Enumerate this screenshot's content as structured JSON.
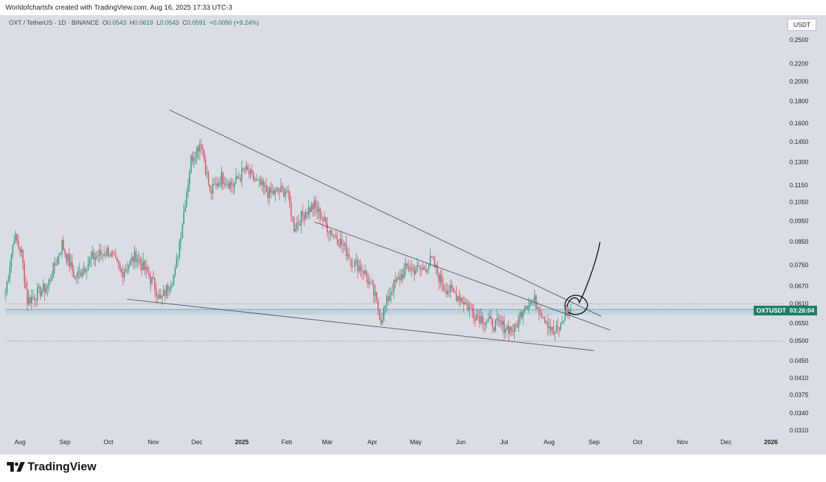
{
  "header": {
    "credit": "Worldofchartsfx created with TradingView.com, Aug 16, 2025 17:33 UTC-3"
  },
  "legend": {
    "symbol": "OXT / TetherUS · 1D · BINANCE",
    "open_label": "O",
    "open": "0.0543",
    "high_label": "H",
    "high": "0.0619",
    "low_label": "L",
    "low": "0.0543",
    "close_label": "C",
    "close": "0.0591",
    "change": "+0.0050 (+9.24%)"
  },
  "currency": "USDT",
  "price_tag": {
    "symbol": "OXTUSDT",
    "countdown": "03:26:04"
  },
  "footer": {
    "brand": "TradingView"
  },
  "colors": {
    "up": "#1f9e83",
    "down": "#e5485c",
    "background": "#dadde4",
    "zone": "#b9cfdb",
    "tag": "#1d7f6b"
  },
  "chart_data": {
    "type": "candlestick",
    "y_scale": "log",
    "y_ticks": [
      "0.2500",
      "0.2200",
      "0.2000",
      "0.1800",
      "0.1600",
      "0.1450",
      "0.1300",
      "0.1150",
      "0.1050",
      "0.0950",
      "0.0850",
      "0.0750",
      "0.0670",
      "0.0610",
      "0.0550",
      "0.0500",
      "0.0450",
      "0.0410",
      "0.0375",
      "0.0340",
      "0.0310"
    ],
    "x_ticks": [
      "Aug",
      "Sep",
      "Oct",
      "Nov",
      "Dec",
      "2025",
      "Feb",
      "Mar",
      "Apr",
      "May",
      "Jun",
      "Jul",
      "Aug",
      "Sep",
      "Oct",
      "Nov",
      "Dec",
      "2026"
    ],
    "x_range": [
      "2024-07-22",
      "2026-01-10"
    ],
    "last_price": 0.0591,
    "price_waypoints": [
      [
        "2024-07-22",
        0.065
      ],
      [
        "2024-07-28",
        0.088
      ],
      [
        "2024-08-02",
        0.08
      ],
      [
        "2024-08-06",
        0.062
      ],
      [
        "2024-08-20",
        0.067
      ],
      [
        "2024-08-30",
        0.084
      ],
      [
        "2024-09-08",
        0.07
      ],
      [
        "2024-09-20",
        0.078
      ],
      [
        "2024-10-01",
        0.081
      ],
      [
        "2024-10-10",
        0.072
      ],
      [
        "2024-10-20",
        0.079
      ],
      [
        "2024-11-01",
        0.068
      ],
      [
        "2024-11-06",
        0.062
      ],
      [
        "2024-11-16",
        0.072
      ],
      [
        "2024-11-22",
        0.1
      ],
      [
        "2024-11-27",
        0.132
      ],
      [
        "2024-12-04",
        0.146
      ],
      [
        "2024-12-10",
        0.11
      ],
      [
        "2024-12-18",
        0.12
      ],
      [
        "2024-12-26",
        0.115
      ],
      [
        "2025-01-03",
        0.125
      ],
      [
        "2025-01-10",
        0.118
      ],
      [
        "2025-01-20",
        0.11
      ],
      [
        "2025-02-01",
        0.112
      ],
      [
        "2025-02-06",
        0.092
      ],
      [
        "2025-02-14",
        0.1
      ],
      [
        "2025-02-20",
        0.103
      ],
      [
        "2025-03-01",
        0.092
      ],
      [
        "2025-03-10",
        0.085
      ],
      [
        "2025-03-18",
        0.077
      ],
      [
        "2025-03-26",
        0.073
      ],
      [
        "2025-04-03",
        0.063
      ],
      [
        "2025-04-07",
        0.056
      ],
      [
        "2025-04-14",
        0.066
      ],
      [
        "2025-04-25",
        0.074
      ],
      [
        "2025-05-05",
        0.073
      ],
      [
        "2025-05-12",
        0.077
      ],
      [
        "2025-05-20",
        0.067
      ],
      [
        "2025-06-01",
        0.063
      ],
      [
        "2025-06-10",
        0.058
      ],
      [
        "2025-06-22",
        0.055
      ],
      [
        "2025-07-01",
        0.054
      ],
      [
        "2025-07-08",
        0.053
      ],
      [
        "2025-07-15",
        0.061
      ],
      [
        "2025-07-22",
        0.062
      ],
      [
        "2025-07-30",
        0.056
      ],
      [
        "2025-08-04",
        0.052
      ],
      [
        "2025-08-09",
        0.054
      ],
      [
        "2025-08-12",
        0.058
      ],
      [
        "2025-08-16",
        0.0591
      ]
    ],
    "horizontal_levels": [
      0.061,
      0.05
    ],
    "support_zone": [
      0.0575,
      0.0595
    ],
    "trendlines": [
      {
        "name": "upper-resistance",
        "from": [
          "2024-11-12",
          0.172
        ],
        "to": [
          "2025-09-06",
          0.057
        ]
      },
      {
        "name": "inner-resistance",
        "from": [
          "2025-02-20",
          0.0945
        ],
        "to": [
          "2025-09-12",
          0.053
        ]
      },
      {
        "name": "lower-support",
        "from": [
          "2024-10-14",
          0.0625
        ],
        "to": [
          "2025-09-01",
          0.0475
        ]
      }
    ]
  }
}
